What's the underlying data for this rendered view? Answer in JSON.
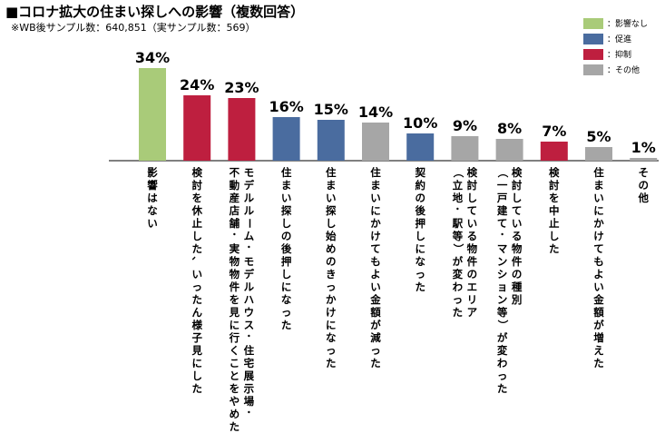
{
  "title": "■コロナ拡大の住まい探しへの影響（複数回答）",
  "subtitle": "※WB後サンプル数：640,851（実サンプル数：569）",
  "colors": {
    "no_impact": "#a9cb79",
    "promote": "#4a6c9f",
    "suppress": "#be1f3f",
    "other": "#a6a6a6",
    "axis": "#000000"
  },
  "legend": [
    {
      "label": "：影響なし",
      "color": "#a9cb79"
    },
    {
      "label": "：促進",
      "color": "#4a6c9f"
    },
    {
      "label": "：抑制",
      "color": "#be1f3f"
    },
    {
      "label": "：その他",
      "color": "#a6a6a6"
    }
  ],
  "chart_data": {
    "type": "bar",
    "title": "",
    "xlabel": "",
    "ylabel": "",
    "ylim": [
      0,
      36
    ],
    "grid": false,
    "legend_position": "top-right",
    "unit": "%",
    "categories": [
      "影響はない",
      "検討を休止した、いったん様子見にした",
      "モデルルーム・モデルハウス・住宅展示場・不動産店舗・実物物件を見に行くことをやめた",
      "住まい探しの後押しになった",
      "住まい探し始めのきっかけになった",
      "住まいにかけてもよい金額が減った",
      "契約の後押しになった",
      "検討している物件のエリア（立地・駅等）が変わった",
      "検討している物件の種別（一戸建て・マンション等）が変わった",
      "検討を中止した",
      "住まいにかけてもよい金額が増えた",
      "その他"
    ],
    "label_lines": [
      [
        "影響はない"
      ],
      [
        "検討を休止した、いったん様子見にした"
      ],
      [
        "モデルルーム・モデルハウス・住宅展示場・",
        "不動産店舗・実物物件を見に行くことをやめた"
      ],
      [
        "住まい探しの後押しになった"
      ],
      [
        "住まい探し始めのきっかけになった"
      ],
      [
        "住まいにかけてもよい金額が減った"
      ],
      [
        "契約の後押しになった"
      ],
      [
        "検討している物件のエリア",
        "（立地・駅等）が変わった"
      ],
      [
        "検討している物件の種別",
        "（一戸建て・マンション等）が変わった"
      ],
      [
        "検討を中止した"
      ],
      [
        "住まいにかけてもよい金額が増えた"
      ],
      [
        "その他"
      ]
    ],
    "values": [
      34,
      24,
      23,
      16,
      15,
      14,
      10,
      9,
      8,
      7,
      5,
      1
    ],
    "value_labels": [
      "34%",
      "24%",
      "23%",
      "16%",
      "15%",
      "14%",
      "10%",
      "9%",
      "8%",
      "7%",
      "5%",
      "1%"
    ],
    "groups": [
      "no_impact",
      "suppress",
      "suppress",
      "promote",
      "promote",
      "other",
      "promote",
      "other",
      "other",
      "suppress",
      "other",
      "other"
    ]
  }
}
